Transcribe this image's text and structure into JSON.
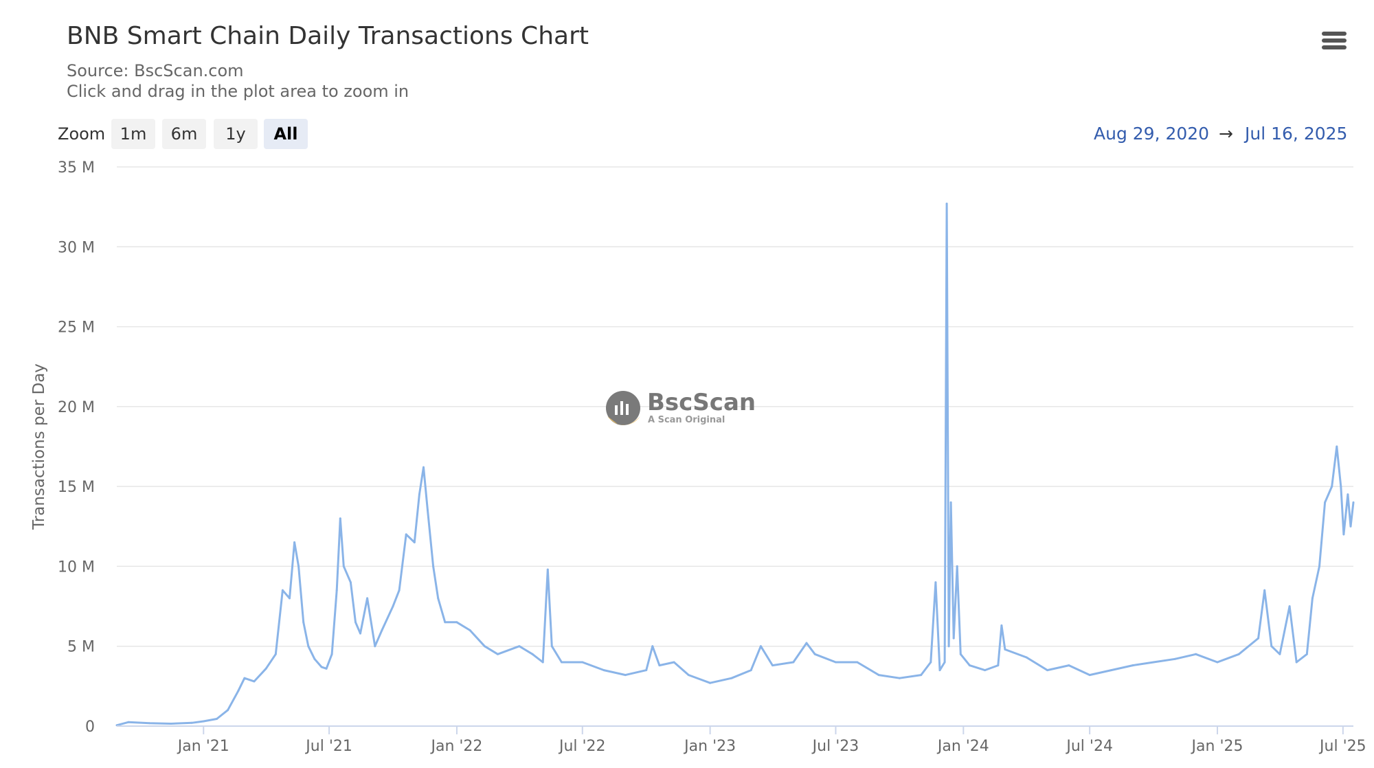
{
  "header": {
    "title": "BNB Smart Chain Daily Transactions Chart",
    "source": "Source: BscScan.com",
    "hint": "Click and drag in the plot area to zoom in",
    "menu_icon": "hamburger-menu-icon"
  },
  "zoom": {
    "label": "Zoom",
    "buttons": [
      "1m",
      "6m",
      "1y",
      "All"
    ],
    "active": "All"
  },
  "range": {
    "from": "Aug 29, 2020",
    "arrow": "→",
    "to": "Jul 16, 2025"
  },
  "watermark": {
    "name": "BscScan",
    "tagline": "A Scan Original"
  },
  "colors": {
    "series": "#8ab4e8",
    "grid": "#e6e6e6",
    "range_text": "#335cad"
  },
  "chart_data": {
    "type": "line",
    "title": "BNB Smart Chain Daily Transactions Chart",
    "subtitle": "Source: BscScan.com",
    "ylabel": "Transactions per Day",
    "xlabel": "",
    "y_ticks": [
      {
        "value": 0,
        "label": "0"
      },
      {
        "value": 5000000,
        "label": "5 M"
      },
      {
        "value": 10000000,
        "label": "10 M"
      },
      {
        "value": 15000000,
        "label": "15 M"
      },
      {
        "value": 20000000,
        "label": "20 M"
      },
      {
        "value": 25000000,
        "label": "25 M"
      },
      {
        "value": 30000000,
        "label": "30 M"
      },
      {
        "value": 35000000,
        "label": "35 M"
      }
    ],
    "x_ticks": [
      {
        "date": "2021-01-01",
        "label": "Jan '21"
      },
      {
        "date": "2021-07-01",
        "label": "Jul '21"
      },
      {
        "date": "2022-01-01",
        "label": "Jan '22"
      },
      {
        "date": "2022-07-01",
        "label": "Jul '22"
      },
      {
        "date": "2023-01-01",
        "label": "Jan '23"
      },
      {
        "date": "2023-07-01",
        "label": "Jul '23"
      },
      {
        "date": "2024-01-01",
        "label": "Jan '24"
      },
      {
        "date": "2024-07-01",
        "label": "Jul '24"
      },
      {
        "date": "2025-01-01",
        "label": "Jan '25"
      },
      {
        "date": "2025-07-01",
        "label": "Jul '25"
      }
    ],
    "xlim": [
      "2020-08-29",
      "2025-07-16"
    ],
    "ylim": [
      0,
      35000000
    ],
    "grid": true,
    "legend": "none",
    "series": [
      {
        "points": [
          [
            "2020-08-29",
            50000
          ],
          [
            "2020-09-15",
            250000
          ],
          [
            "2020-10-15",
            180000
          ],
          [
            "2020-11-15",
            150000
          ],
          [
            "2020-12-15",
            200000
          ],
          [
            "2021-01-01",
            300000
          ],
          [
            "2021-01-20",
            450000
          ],
          [
            "2021-02-05",
            1000000
          ],
          [
            "2021-02-20",
            2200000
          ],
          [
            "2021-03-01",
            3000000
          ],
          [
            "2021-03-15",
            2800000
          ],
          [
            "2021-04-01",
            3600000
          ],
          [
            "2021-04-15",
            4500000
          ],
          [
            "2021-04-25",
            8500000
          ],
          [
            "2021-05-05",
            8000000
          ],
          [
            "2021-05-12",
            11500000
          ],
          [
            "2021-05-18",
            10000000
          ],
          [
            "2021-05-25",
            6500000
          ],
          [
            "2021-06-01",
            5000000
          ],
          [
            "2021-06-10",
            4200000
          ],
          [
            "2021-06-20",
            3700000
          ],
          [
            "2021-06-27",
            3600000
          ],
          [
            "2021-07-05",
            4500000
          ],
          [
            "2021-07-12",
            8500000
          ],
          [
            "2021-07-17",
            13000000
          ],
          [
            "2021-07-22",
            10000000
          ],
          [
            "2021-08-01",
            9000000
          ],
          [
            "2021-08-08",
            6500000
          ],
          [
            "2021-08-15",
            5800000
          ],
          [
            "2021-08-25",
            8000000
          ],
          [
            "2021-09-05",
            5000000
          ],
          [
            "2021-09-15",
            6000000
          ],
          [
            "2021-10-01",
            7500000
          ],
          [
            "2021-10-10",
            8500000
          ],
          [
            "2021-10-20",
            12000000
          ],
          [
            "2021-11-01",
            11500000
          ],
          [
            "2021-11-08",
            14500000
          ],
          [
            "2021-11-14",
            16200000
          ],
          [
            "2021-11-20",
            13500000
          ],
          [
            "2021-11-28",
            10000000
          ],
          [
            "2021-12-05",
            8000000
          ],
          [
            "2021-12-15",
            6500000
          ],
          [
            "2022-01-01",
            6500000
          ],
          [
            "2022-01-20",
            6000000
          ],
          [
            "2022-02-10",
            5000000
          ],
          [
            "2022-03-01",
            4500000
          ],
          [
            "2022-04-01",
            5000000
          ],
          [
            "2022-04-20",
            4500000
          ],
          [
            "2022-05-05",
            4000000
          ],
          [
            "2022-05-12",
            9800000
          ],
          [
            "2022-05-18",
            5000000
          ],
          [
            "2022-06-01",
            4000000
          ],
          [
            "2022-07-01",
            4000000
          ],
          [
            "2022-08-01",
            3500000
          ],
          [
            "2022-09-01",
            3200000
          ],
          [
            "2022-10-01",
            3500000
          ],
          [
            "2022-10-10",
            5000000
          ],
          [
            "2022-10-20",
            3800000
          ],
          [
            "2022-11-10",
            4000000
          ],
          [
            "2022-12-01",
            3200000
          ],
          [
            "2023-01-01",
            2700000
          ],
          [
            "2023-02-01",
            3000000
          ],
          [
            "2023-03-01",
            3500000
          ],
          [
            "2023-03-15",
            5000000
          ],
          [
            "2023-04-01",
            3800000
          ],
          [
            "2023-05-01",
            4000000
          ],
          [
            "2023-05-20",
            5200000
          ],
          [
            "2023-06-01",
            4500000
          ],
          [
            "2023-07-01",
            4000000
          ],
          [
            "2023-08-01",
            4000000
          ],
          [
            "2023-09-01",
            3200000
          ],
          [
            "2023-10-01",
            3000000
          ],
          [
            "2023-11-01",
            3200000
          ],
          [
            "2023-11-15",
            4000000
          ],
          [
            "2023-11-22",
            9000000
          ],
          [
            "2023-11-28",
            3500000
          ],
          [
            "2023-12-05",
            4000000
          ],
          [
            "2023-12-08",
            32700000
          ],
          [
            "2023-12-11",
            5000000
          ],
          [
            "2023-12-14",
            14000000
          ],
          [
            "2023-12-18",
            5500000
          ],
          [
            "2023-12-23",
            10000000
          ],
          [
            "2023-12-28",
            4500000
          ],
          [
            "2024-01-10",
            3800000
          ],
          [
            "2024-02-01",
            3500000
          ],
          [
            "2024-02-20",
            3800000
          ],
          [
            "2024-02-25",
            6300000
          ],
          [
            "2024-03-01",
            4800000
          ],
          [
            "2024-04-01",
            4300000
          ],
          [
            "2024-05-01",
            3500000
          ],
          [
            "2024-06-01",
            3800000
          ],
          [
            "2024-07-01",
            3200000
          ],
          [
            "2024-08-01",
            3500000
          ],
          [
            "2024-09-01",
            3800000
          ],
          [
            "2024-10-01",
            4000000
          ],
          [
            "2024-11-01",
            4200000
          ],
          [
            "2024-12-01",
            4500000
          ],
          [
            "2025-01-01",
            4000000
          ],
          [
            "2025-02-01",
            4500000
          ],
          [
            "2025-03-01",
            5500000
          ],
          [
            "2025-03-10",
            8500000
          ],
          [
            "2025-03-20",
            5000000
          ],
          [
            "2025-04-01",
            4500000
          ],
          [
            "2025-04-15",
            7500000
          ],
          [
            "2025-04-25",
            4000000
          ],
          [
            "2025-05-10",
            4500000
          ],
          [
            "2025-05-18",
            8000000
          ],
          [
            "2025-05-28",
            10000000
          ],
          [
            "2025-06-05",
            14000000
          ],
          [
            "2025-06-15",
            15000000
          ],
          [
            "2025-06-22",
            17500000
          ],
          [
            "2025-06-28",
            15000000
          ],
          [
            "2025-07-02",
            12000000
          ],
          [
            "2025-07-08",
            14500000
          ],
          [
            "2025-07-12",
            12500000
          ],
          [
            "2025-07-16",
            14000000
          ]
        ]
      }
    ]
  }
}
